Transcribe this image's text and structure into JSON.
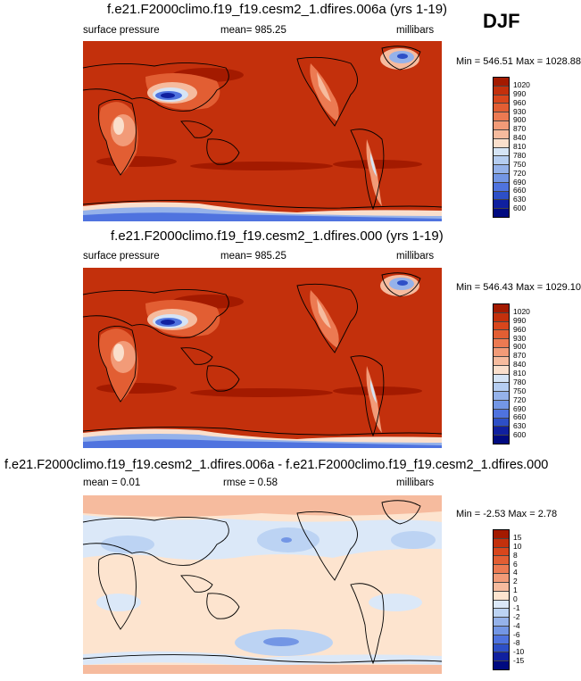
{
  "season": "DJF",
  "panels": [
    {
      "title": "f.e21.F2000climo.f19_f19.cesm2_1.dfires.006a (yrs 1-19)",
      "variable": "surface pressure",
      "stat_label": "mean= 985.25",
      "units": "millibars",
      "minmax": "Min = 546.51 Max = 1028.88",
      "levels": [
        "1020",
        "990",
        "960",
        "930",
        "900",
        "870",
        "840",
        "810",
        "780",
        "750",
        "720",
        "690",
        "660",
        "630",
        "600"
      ],
      "colors": [
        "#a31a00",
        "#c3300c",
        "#d8461c",
        "#e25e33",
        "#ec7a52",
        "#f29b78",
        "#f6bb9e",
        "#fadfcc",
        "#d5e4f6",
        "#b5cdf1",
        "#95b2ea",
        "#7396e5",
        "#4f73df",
        "#2d4fc7",
        "#10209f",
        "#000a80"
      ]
    },
    {
      "title": "f.e21.F2000climo.f19_f19.cesm2_1.dfires.000 (yrs 1-19)",
      "variable": "surface pressure",
      "stat_label": "mean= 985.25",
      "units": "millibars",
      "minmax": "Min = 546.43 Max = 1029.10",
      "levels": [
        "1020",
        "990",
        "960",
        "930",
        "900",
        "870",
        "840",
        "810",
        "780",
        "750",
        "720",
        "690",
        "660",
        "630",
        "600"
      ],
      "colors": [
        "#a31a00",
        "#c3300c",
        "#d8461c",
        "#e25e33",
        "#ec7a52",
        "#f29b78",
        "#f6bb9e",
        "#fadfcc",
        "#d5e4f6",
        "#b5cdf1",
        "#95b2ea",
        "#7396e5",
        "#4f73df",
        "#2d4fc7",
        "#10209f",
        "#000a80"
      ]
    },
    {
      "title": "f.e21.F2000climo.f19_f19.cesm2_1.dfires.006a - f.e21.F2000climo.f19_f19.cesm2_1.dfires.000",
      "mean_label": "mean =  0.01",
      "rmse_label": "rmse =  0.58",
      "units": "millibars",
      "minmax": "Min =  -2.53 Max =  2.78",
      "levels": [
        "15",
        "10",
        "8",
        "6",
        "4",
        "2",
        "1",
        "0",
        "-1",
        "-2",
        "-4",
        "-6",
        "-8",
        "-10",
        "-15"
      ],
      "colors": [
        "#a31a00",
        "#c3300c",
        "#d8461c",
        "#e25e33",
        "#ec7a52",
        "#f29b78",
        "#f6bb9e",
        "#fde4cf",
        "#dbe8f8",
        "#bcd3f3",
        "#95b2ea",
        "#7396e5",
        "#4f73df",
        "#2d4fc7",
        "#10209f",
        "#000a80"
      ]
    }
  ],
  "chart_data": [
    {
      "type": "heatmap",
      "title": "f.e21.F2000climo.f19_f19.cesm2_1.dfires.006a (yrs 1-19)",
      "variable": "surface pressure",
      "units": "millibars",
      "mean": 985.25,
      "min": 546.51,
      "max": 1028.88,
      "contour_levels": [
        600,
        630,
        660,
        690,
        720,
        750,
        780,
        810,
        840,
        870,
        900,
        930,
        960,
        990,
        1020
      ],
      "projection": "cylindrical equidistant, centered on the Pacific"
    },
    {
      "type": "heatmap",
      "title": "f.e21.F2000climo.f19_f19.cesm2_1.dfires.000 (yrs 1-19)",
      "variable": "surface pressure",
      "units": "millibars",
      "mean": 985.25,
      "min": 546.43,
      "max": 1029.1,
      "contour_levels": [
        600,
        630,
        660,
        690,
        720,
        750,
        780,
        810,
        840,
        870,
        900,
        930,
        960,
        990,
        1020
      ],
      "projection": "cylindrical equidistant, centered on the Pacific"
    },
    {
      "type": "heatmap",
      "title": "f.e21.F2000climo.f19_f19.cesm2_1.dfires.006a - f.e21.F2000climo.f19_f19.cesm2_1.dfires.000",
      "units": "millibars",
      "mean": 0.01,
      "rmse": 0.58,
      "min": -2.53,
      "max": 2.78,
      "contour_levels": [
        -15,
        -10,
        -8,
        -6,
        -4,
        -2,
        -1,
        0,
        1,
        2,
        4,
        6,
        8,
        10,
        15
      ],
      "projection": "cylindrical equidistant, centered on the Pacific"
    }
  ]
}
